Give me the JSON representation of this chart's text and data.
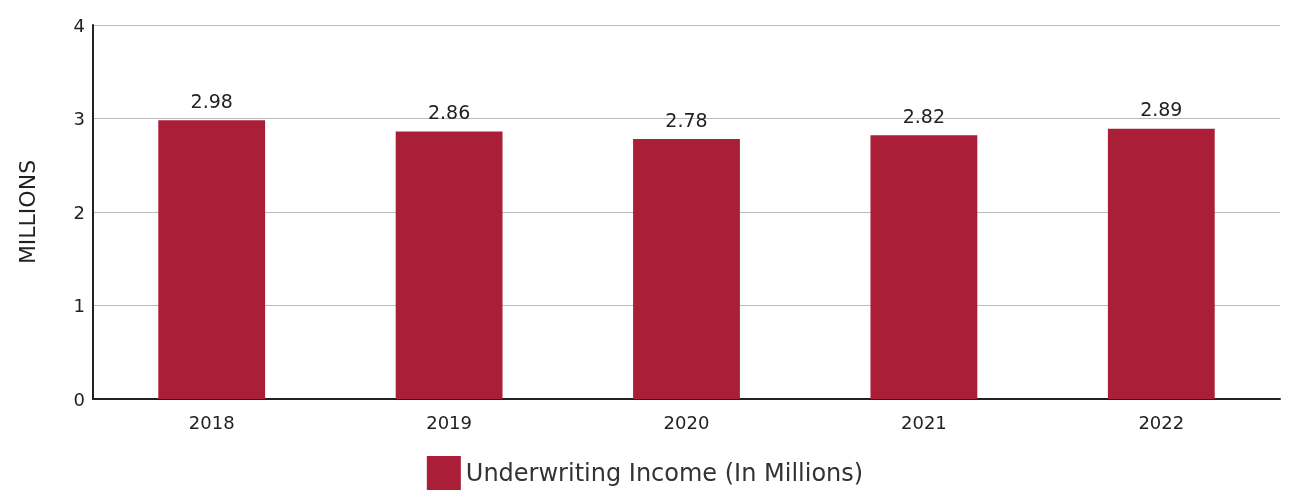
{
  "chart_data": {
    "type": "bar",
    "ylabel": "MILLIONS",
    "categories": [
      "2018",
      "2019",
      "2020",
      "2021",
      "2022"
    ],
    "series": [
      {
        "name": "Underwriting Income (In Millions)",
        "color": "#ab1e38",
        "values": [
          2.98,
          2.86,
          2.78,
          2.82,
          2.89
        ]
      }
    ],
    "ylim": [
      0,
      4
    ],
    "yticks": [
      0,
      1,
      2,
      3,
      4
    ],
    "grid": "y",
    "legend": "bottom",
    "data_labels": true
  }
}
